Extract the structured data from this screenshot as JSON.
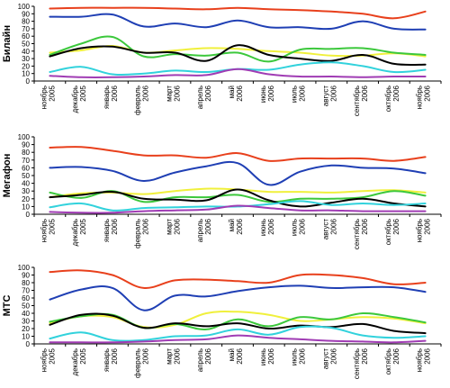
{
  "chart_data": [
    {
      "type": "line",
      "ylabel": "Билайн",
      "ylim": [
        0,
        100
      ],
      "yticks": [
        0,
        10,
        20,
        30,
        40,
        50,
        60,
        70,
        80,
        90,
        100
      ],
      "grid": false,
      "categories": [
        [
          "ноябрь",
          "2005"
        ],
        [
          "декабрь",
          "2005"
        ],
        [
          "январь",
          "2006"
        ],
        [
          "февраль",
          "2006"
        ],
        [
          "март",
          "2006"
        ],
        [
          "апрель",
          "2006"
        ],
        [
          "май",
          "2006"
        ],
        [
          "июнь",
          "2006"
        ],
        [
          "июль",
          "2006"
        ],
        [
          "август",
          "2006"
        ],
        [
          "сентябрь",
          "2006"
        ],
        [
          "октябрь",
          "2006"
        ],
        [
          "ноябрь",
          "2006"
        ]
      ],
      "series": [
        {
          "color": "#e8401c",
          "values": [
            97,
            98,
            98,
            98,
            97,
            96,
            98,
            96,
            95,
            93,
            90,
            84,
            93
          ]
        },
        {
          "color": "#1f3fb4",
          "values": [
            86,
            86,
            89,
            73,
            77,
            72,
            81,
            72,
            72,
            70,
            80,
            70,
            69
          ]
        },
        {
          "color": "#f0f03c",
          "values": [
            38,
            41,
            47,
            38,
            41,
            44,
            43,
            40,
            38,
            34,
            34,
            37,
            33
          ]
        },
        {
          "color": "#3cc83c",
          "values": [
            35,
            50,
            59,
            33,
            36,
            34,
            38,
            26,
            42,
            43,
            44,
            38,
            35
          ]
        },
        {
          "color": "#000000",
          "values": [
            33,
            44,
            46,
            38,
            38,
            27,
            48,
            35,
            30,
            27,
            35,
            23,
            22
          ]
        },
        {
          "color": "#32d2dc",
          "values": [
            12,
            19,
            9,
            10,
            14,
            12,
            16,
            15,
            22,
            25,
            20,
            12,
            15
          ]
        },
        {
          "color": "#a03cb4",
          "values": [
            7,
            5,
            5,
            6,
            8,
            8,
            16,
            9,
            6,
            6,
            5,
            6,
            6
          ]
        }
      ]
    },
    {
      "type": "line",
      "ylabel": "Мегафон",
      "ylim": [
        0,
        100
      ],
      "yticks": [
        0,
        10,
        20,
        30,
        40,
        50,
        60,
        70,
        80,
        90,
        100
      ],
      "grid": false,
      "categories": [
        [
          "ноябрь",
          "2005"
        ],
        [
          "декабрь",
          "2005"
        ],
        [
          "январь",
          "2006"
        ],
        [
          "февраль",
          "2006"
        ],
        [
          "март",
          "2006"
        ],
        [
          "апрель",
          "2006"
        ],
        [
          "май",
          "2006"
        ],
        [
          "июнь",
          "2006"
        ],
        [
          "июль",
          "2006"
        ],
        [
          "август",
          "2006"
        ],
        [
          "сентябрь",
          "2006"
        ],
        [
          "октябрь",
          "2006"
        ],
        [
          "ноябрь",
          "2006"
        ]
      ],
      "series": [
        {
          "color": "#e8401c",
          "values": [
            86,
            87,
            82,
            76,
            76,
            73,
            79,
            69,
            72,
            72,
            72,
            69,
            74
          ]
        },
        {
          "color": "#1f3fb4",
          "values": [
            60,
            61,
            56,
            43,
            54,
            62,
            66,
            38,
            55,
            63,
            60,
            59,
            53
          ]
        },
        {
          "color": "#f0f03c",
          "values": [
            22,
            27,
            28,
            26,
            30,
            33,
            32,
            29,
            29,
            28,
            30,
            31,
            28
          ]
        },
        {
          "color": "#3cc83c",
          "values": [
            28,
            21,
            30,
            16,
            22,
            22,
            25,
            16,
            20,
            20,
            22,
            30,
            24
          ]
        },
        {
          "color": "#000000",
          "values": [
            22,
            25,
            29,
            20,
            19,
            18,
            32,
            18,
            10,
            15,
            20,
            14,
            10
          ]
        },
        {
          "color": "#32d2dc",
          "values": [
            9,
            14,
            5,
            8,
            9,
            10,
            10,
            13,
            17,
            12,
            14,
            12,
            14
          ]
        },
        {
          "color": "#a03cb4",
          "values": [
            3,
            2,
            2,
            4,
            5,
            6,
            11,
            8,
            5,
            5,
            4,
            4,
            4
          ]
        }
      ]
    },
    {
      "type": "line",
      "ylabel": "МТС",
      "ylim": [
        0,
        100
      ],
      "yticks": [
        0,
        10,
        20,
        30,
        40,
        50,
        60,
        70,
        80,
        90,
        100
      ],
      "grid": false,
      "categories": [
        [
          "ноябрь",
          "2005"
        ],
        [
          "декабрь",
          "2005"
        ],
        [
          "январь",
          "2006"
        ],
        [
          "февраль",
          "2006"
        ],
        [
          "март",
          "2006"
        ],
        [
          "апрель",
          "2006"
        ],
        [
          "май",
          "2006"
        ],
        [
          "июнь",
          "2006"
        ],
        [
          "июль",
          "2006"
        ],
        [
          "август",
          "2006"
        ],
        [
          "сентябрь",
          "2006"
        ],
        [
          "октябрь",
          "2006"
        ],
        [
          "ноябрь",
          "2006"
        ]
      ],
      "series": [
        {
          "color": "#e8401c",
          "values": [
            94,
            96,
            90,
            73,
            83,
            84,
            82,
            80,
            90,
            90,
            86,
            78,
            80
          ]
        },
        {
          "color": "#1f3fb4",
          "values": [
            58,
            71,
            73,
            44,
            63,
            62,
            69,
            74,
            76,
            73,
            74,
            74,
            68
          ]
        },
        {
          "color": "#f0f03c",
          "values": [
            27,
            36,
            35,
            22,
            25,
            40,
            42,
            38,
            30,
            32,
            35,
            33,
            27
          ]
        },
        {
          "color": "#3cc83c",
          "values": [
            29,
            36,
            38,
            21,
            26,
            19,
            32,
            23,
            35,
            32,
            40,
            35,
            28
          ]
        },
        {
          "color": "#000000",
          "values": [
            25,
            38,
            37,
            21,
            27,
            23,
            27,
            20,
            24,
            22,
            26,
            17,
            14
          ]
        },
        {
          "color": "#32d2dc",
          "values": [
            7,
            15,
            5,
            5,
            10,
            11,
            19,
            12,
            22,
            21,
            11,
            8,
            10
          ]
        },
        {
          "color": "#a03cb4",
          "values": [
            2,
            2,
            2,
            3,
            5,
            6,
            11,
            8,
            6,
            4,
            3,
            2,
            4
          ]
        }
      ]
    }
  ]
}
